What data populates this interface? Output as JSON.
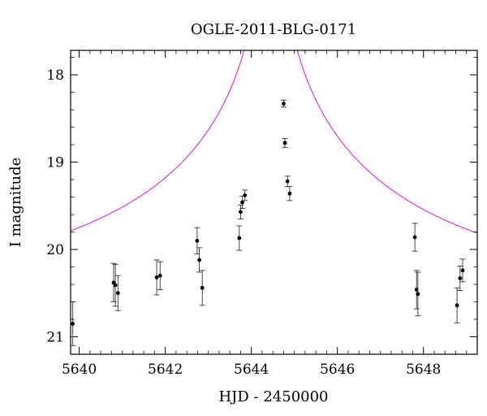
{
  "chart_data": {
    "type": "scatter",
    "title": "OGLE-2011-BLG-0171",
    "xlabel": "HJD - 2450000",
    "ylabel": "I magnitude",
    "xlim": [
      5639.8,
      5649.25
    ],
    "ylim": [
      21.2,
      17.72
    ],
    "y_inverted": true,
    "grid": false,
    "x_ticks": [
      5640,
      5642,
      5644,
      5646,
      5648
    ],
    "x_tick_labels": [
      "5640",
      "5642",
      "5644",
      "5646",
      "5648"
    ],
    "y_ticks": [
      18,
      19,
      20,
      21
    ],
    "y_tick_labels": [
      "18",
      "19",
      "20",
      "21"
    ],
    "colors": {
      "model": "#e020e0",
      "points": "#000000",
      "axes": "#000000"
    },
    "model": {
      "name": "",
      "t0": 5644.45,
      "tE": 8,
      "u0": 0.0019,
      "baseline_mag": 20.5
    },
    "series": [
      {
        "name": "",
        "points": [
          {
            "x": 5639.85,
            "y": 20.85,
            "err": 0.25
          },
          {
            "x": 5640.8,
            "y": 20.38,
            "err": 0.22
          },
          {
            "x": 5640.84,
            "y": 20.41,
            "err": 0.24
          },
          {
            "x": 5640.9,
            "y": 20.5,
            "err": 0.2
          },
          {
            "x": 5641.8,
            "y": 20.32,
            "err": 0.2
          },
          {
            "x": 5641.88,
            "y": 20.3,
            "err": 0.16
          },
          {
            "x": 5642.74,
            "y": 19.9,
            "err": 0.15
          },
          {
            "x": 5642.79,
            "y": 20.12,
            "err": 0.14
          },
          {
            "x": 5642.86,
            "y": 20.44,
            "err": 0.2
          },
          {
            "x": 5643.72,
            "y": 19.87,
            "err": 0.14
          },
          {
            "x": 5643.75,
            "y": 19.57,
            "err": 0.08
          },
          {
            "x": 5643.79,
            "y": 19.46,
            "err": 0.07
          },
          {
            "x": 5643.85,
            "y": 19.38,
            "err": 0.06
          },
          {
            "x": 5644.75,
            "y": 18.33,
            "err": 0.04
          },
          {
            "x": 5644.78,
            "y": 18.78,
            "err": 0.05
          },
          {
            "x": 5644.84,
            "y": 19.22,
            "err": 0.06
          },
          {
            "x": 5644.89,
            "y": 19.36,
            "err": 0.08
          },
          {
            "x": 5647.8,
            "y": 19.86,
            "err": 0.16
          },
          {
            "x": 5647.84,
            "y": 20.46,
            "err": 0.22
          },
          {
            "x": 5647.87,
            "y": 20.51,
            "err": 0.25
          },
          {
            "x": 5648.78,
            "y": 20.64,
            "err": 0.2
          },
          {
            "x": 5648.85,
            "y": 20.33,
            "err": 0.14
          },
          {
            "x": 5648.91,
            "y": 20.24,
            "err": 0.13
          }
        ]
      }
    ]
  }
}
